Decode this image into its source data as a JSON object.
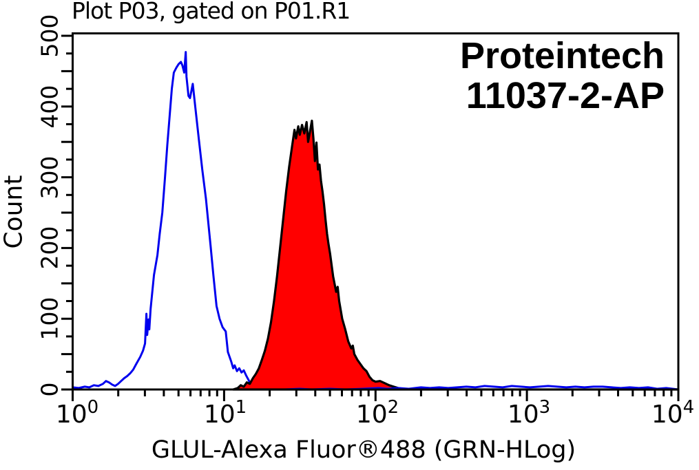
{
  "header": {
    "title": "Plot P03, gated on P01.R1"
  },
  "annotation": {
    "line1": "Proteintech",
    "line2": "11037-2-AP",
    "color": "#000000"
  },
  "chart_data": {
    "type": "line",
    "subtype": "flow-cytometry-histogram-overlay",
    "title": "Plot P03, gated on P01.R1",
    "xlabel": "GLUL-Alexa Fluor®488 (GRN-HLog)",
    "ylabel": "Count",
    "x_scale": "log10",
    "x_range": [
      1,
      10000
    ],
    "ylim": [
      0,
      500
    ],
    "grid": false,
    "legend_position": "none",
    "xaxis": {
      "major_ticks": [
        {
          "base": "10",
          "exp": "0"
        },
        {
          "base": "10",
          "exp": "1"
        },
        {
          "base": "10",
          "exp": "2"
        },
        {
          "base": "10",
          "exp": "3"
        },
        {
          "base": "10",
          "exp": "4"
        }
      ],
      "minor_ticks_per_decade": [
        2,
        3,
        4,
        5,
        6,
        7,
        8,
        9
      ]
    },
    "yaxis": {
      "major_tick_labels": [
        "0",
        "100",
        "200",
        "300",
        "400",
        "500"
      ],
      "major_tick_step": 100,
      "medium_tick_step": 50,
      "minor_tick_step": 25,
      "label_rotation_deg": 90
    },
    "series": [
      {
        "name": "blue-outline-histogram",
        "style": "open-outline",
        "color": "#0000ee",
        "peak_x": 5.5,
        "peak_count": 477,
        "points_logx_count": [
          [
            0.0,
            3
          ],
          [
            0.04,
            2
          ],
          [
            0.08,
            4
          ],
          [
            0.11,
            3
          ],
          [
            0.14,
            6
          ],
          [
            0.17,
            5
          ],
          [
            0.2,
            8
          ],
          [
            0.22,
            12
          ],
          [
            0.24,
            10
          ],
          [
            0.26,
            7
          ],
          [
            0.28,
            5
          ],
          [
            0.3,
            8
          ],
          [
            0.32,
            12
          ],
          [
            0.34,
            16
          ],
          [
            0.36,
            19
          ],
          [
            0.38,
            23
          ],
          [
            0.4,
            28
          ],
          [
            0.42,
            36
          ],
          [
            0.446,
            46
          ],
          [
            0.465,
            55
          ],
          [
            0.478,
            65
          ],
          [
            0.487,
            107
          ],
          [
            0.492,
            77
          ],
          [
            0.501,
            99
          ],
          [
            0.506,
            85
          ],
          [
            0.515,
            114
          ],
          [
            0.537,
            162
          ],
          [
            0.56,
            190
          ],
          [
            0.575,
            220
          ],
          [
            0.592,
            250
          ],
          [
            0.61,
            300
          ],
          [
            0.625,
            345
          ],
          [
            0.64,
            385
          ],
          [
            0.655,
            425
          ],
          [
            0.668,
            448
          ],
          [
            0.685,
            455
          ],
          [
            0.7,
            460
          ],
          [
            0.715,
            463
          ],
          [
            0.725,
            458
          ],
          [
            0.737,
            448
          ],
          [
            0.747,
            477
          ],
          [
            0.752,
            442
          ],
          [
            0.765,
            415
          ],
          [
            0.775,
            412
          ],
          [
            0.793,
            432
          ],
          [
            0.81,
            399
          ],
          [
            0.833,
            354
          ],
          [
            0.856,
            311
          ],
          [
            0.88,
            270
          ],
          [
            0.91,
            205
          ],
          [
            0.93,
            160
          ],
          [
            0.95,
            118
          ],
          [
            0.97,
            100
          ],
          [
            0.99,
            88
          ],
          [
            1.011,
            82
          ],
          [
            1.025,
            53
          ],
          [
            1.048,
            39
          ],
          [
            1.06,
            30
          ],
          [
            1.07,
            34
          ],
          [
            1.085,
            26
          ],
          [
            1.1,
            30
          ],
          [
            1.115,
            24
          ],
          [
            1.13,
            27
          ],
          [
            1.145,
            20
          ],
          [
            1.16,
            14
          ],
          [
            1.175,
            8
          ],
          [
            1.19,
            4
          ],
          [
            1.21,
            2
          ],
          [
            1.25,
            1
          ],
          [
            1.3,
            0
          ],
          [
            1.4,
            0
          ],
          [
            1.5,
            1
          ],
          [
            1.58,
            0
          ],
          [
            1.7,
            1
          ],
          [
            1.8,
            0
          ],
          [
            1.92,
            1
          ],
          [
            2.02,
            2
          ],
          [
            2.08,
            1
          ],
          [
            2.15,
            2
          ],
          [
            2.22,
            1
          ],
          [
            2.3,
            3
          ],
          [
            2.36,
            2
          ],
          [
            2.42,
            3
          ],
          [
            2.48,
            2
          ],
          [
            2.54,
            3
          ],
          [
            2.6,
            4
          ],
          [
            2.66,
            3
          ],
          [
            2.72,
            5
          ],
          [
            2.78,
            4
          ],
          [
            2.84,
            3
          ],
          [
            2.9,
            5
          ],
          [
            2.96,
            4
          ],
          [
            3.02,
            3
          ],
          [
            3.08,
            4
          ],
          [
            3.14,
            5
          ],
          [
            3.2,
            4
          ],
          [
            3.26,
            3
          ],
          [
            3.32,
            4
          ],
          [
            3.38,
            3
          ],
          [
            3.44,
            4
          ],
          [
            3.5,
            4
          ],
          [
            3.56,
            3
          ],
          [
            3.62,
            2
          ],
          [
            3.68,
            3
          ],
          [
            3.74,
            2
          ],
          [
            3.8,
            3
          ],
          [
            3.86,
            1
          ],
          [
            3.92,
            2
          ],
          [
            4.0,
            0
          ]
        ]
      },
      {
        "name": "red-filled-histogram",
        "style": "filled",
        "fill": "#ff0000",
        "outline": "#000000",
        "peak_x": 38,
        "peak_count": 380,
        "points_logx_count": [
          [
            1.06,
            0
          ],
          [
            1.09,
            2
          ],
          [
            1.11,
            6
          ],
          [
            1.13,
            4
          ],
          [
            1.15,
            10
          ],
          [
            1.17,
            8
          ],
          [
            1.19,
            16
          ],
          [
            1.21,
            22
          ],
          [
            1.23,
            30
          ],
          [
            1.25,
            42
          ],
          [
            1.27,
            55
          ],
          [
            1.29,
            72
          ],
          [
            1.31,
            95
          ],
          [
            1.33,
            125
          ],
          [
            1.35,
            160
          ],
          [
            1.37,
            200
          ],
          [
            1.39,
            240
          ],
          [
            1.41,
            280
          ],
          [
            1.43,
            315
          ],
          [
            1.45,
            345
          ],
          [
            1.465,
            367
          ],
          [
            1.475,
            355
          ],
          [
            1.49,
            372
          ],
          [
            1.5,
            360
          ],
          [
            1.515,
            374
          ],
          [
            1.53,
            362
          ],
          [
            1.545,
            378
          ],
          [
            1.555,
            350
          ],
          [
            1.565,
            362
          ],
          [
            1.58,
            380
          ],
          [
            1.59,
            355
          ],
          [
            1.6,
            323
          ],
          [
            1.61,
            349
          ],
          [
            1.62,
            311
          ],
          [
            1.63,
            318
          ],
          [
            1.64,
            295
          ],
          [
            1.65,
            280
          ],
          [
            1.66,
            262
          ],
          [
            1.67,
            240
          ],
          [
            1.68,
            220
          ],
          [
            1.69,
            205
          ],
          [
            1.7,
            192
          ],
          [
            1.72,
            160
          ],
          [
            1.74,
            138
          ],
          [
            1.75,
            145
          ],
          [
            1.76,
            125
          ],
          [
            1.78,
            100
          ],
          [
            1.8,
            85
          ],
          [
            1.82,
            68
          ],
          [
            1.84,
            58
          ],
          [
            1.85,
            62
          ],
          [
            1.86,
            50
          ],
          [
            1.88,
            42
          ],
          [
            1.9,
            36
          ],
          [
            1.92,
            30
          ],
          [
            1.94,
            26
          ],
          [
            1.96,
            18
          ],
          [
            1.98,
            13
          ],
          [
            2.0,
            11
          ],
          [
            2.03,
            12
          ],
          [
            2.06,
            9
          ],
          [
            2.09,
            6
          ],
          [
            2.12,
            4
          ],
          [
            2.15,
            2
          ],
          [
            2.18,
            1
          ],
          [
            2.22,
            0
          ],
          [
            4.0,
            0
          ]
        ]
      }
    ]
  }
}
